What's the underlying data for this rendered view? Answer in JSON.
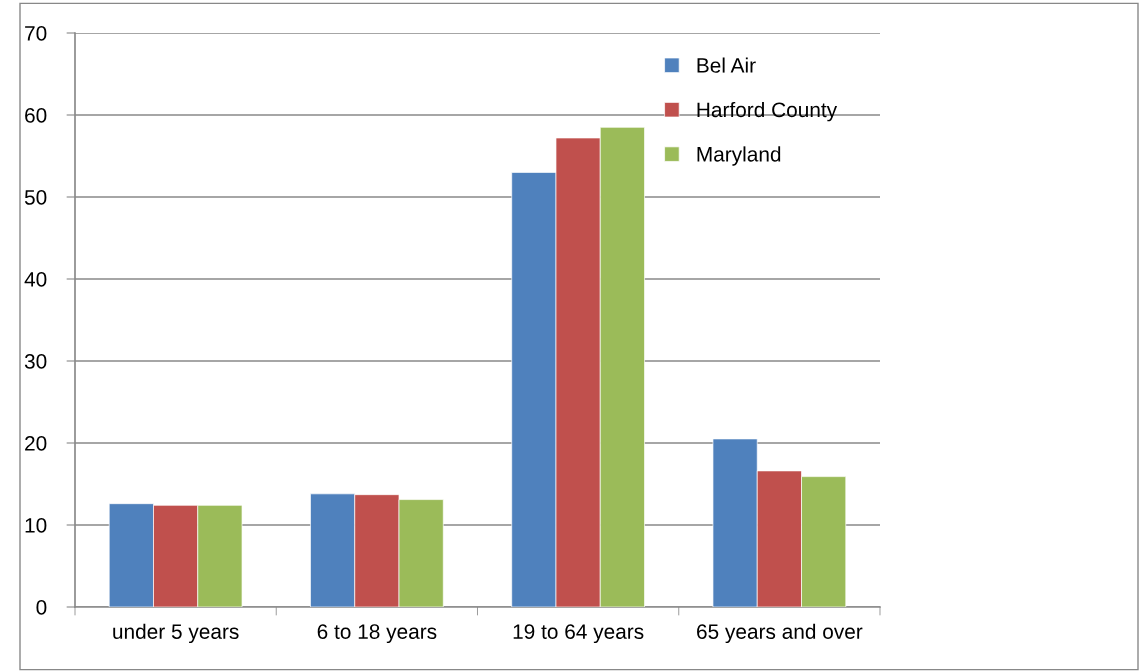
{
  "chart_data": {
    "type": "bar",
    "categories": [
      "under 5 years",
      "6 to 18 years",
      "19 to 64 years",
      "65 years and over"
    ],
    "series": [
      {
        "name": "Bel Air",
        "color": "#4f81bd",
        "values": [
          12.6,
          13.8,
          53.0,
          20.5
        ]
      },
      {
        "name": "Harford County",
        "color": "#c0504d",
        "values": [
          12.4,
          13.7,
          57.2,
          16.6
        ]
      },
      {
        "name": "Maryland",
        "color": "#9bbb59",
        "values": [
          12.4,
          13.1,
          58.5,
          15.9
        ]
      }
    ],
    "ylim": [
      0,
      70
    ],
    "yticks": [
      0,
      10,
      20,
      30,
      40,
      50,
      60,
      70
    ],
    "grid": "y",
    "legend": "top right"
  }
}
